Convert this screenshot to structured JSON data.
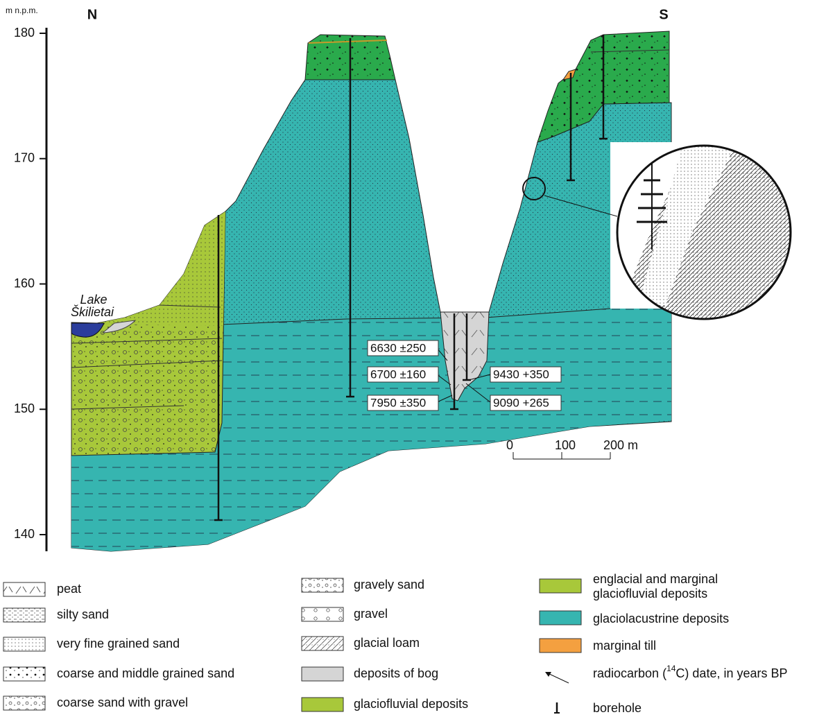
{
  "axis": {
    "unit": "m n.p.m.",
    "ticks": [
      140,
      150,
      160,
      170,
      180
    ]
  },
  "directions": {
    "left": "N",
    "right": "S"
  },
  "lake": {
    "line1": "Lake",
    "line2": "Škilietai"
  },
  "dates": [
    "6630 ±250",
    "6700 ±160",
    "7950 ±350",
    "9430 +350",
    "9090 +265"
  ],
  "scale": {
    "ticks": [
      0,
      100,
      {
        "value": 200,
        "label": "200 m"
      }
    ]
  },
  "legend": {
    "column1": [
      "peat",
      "silty sand",
      "very fine grained sand",
      "coarse and middle grained sand",
      "coarse sand with gravel"
    ],
    "column2": [
      "gravely sand",
      "gravel",
      "glacial loam",
      "deposits of bog",
      "glaciofluvial deposits"
    ],
    "column3": {
      "englacial": [
        "englacial and marginal",
        "glaciofluvial deposits"
      ],
      "glaciolacustrine": "glaciolacustrine deposits",
      "till": "marginal till",
      "radiocarbon": {
        "before": "radiocarbon (",
        "sup": "14",
        "after": "C) date, in years BP"
      },
      "borehole": "borehole"
    }
  }
}
